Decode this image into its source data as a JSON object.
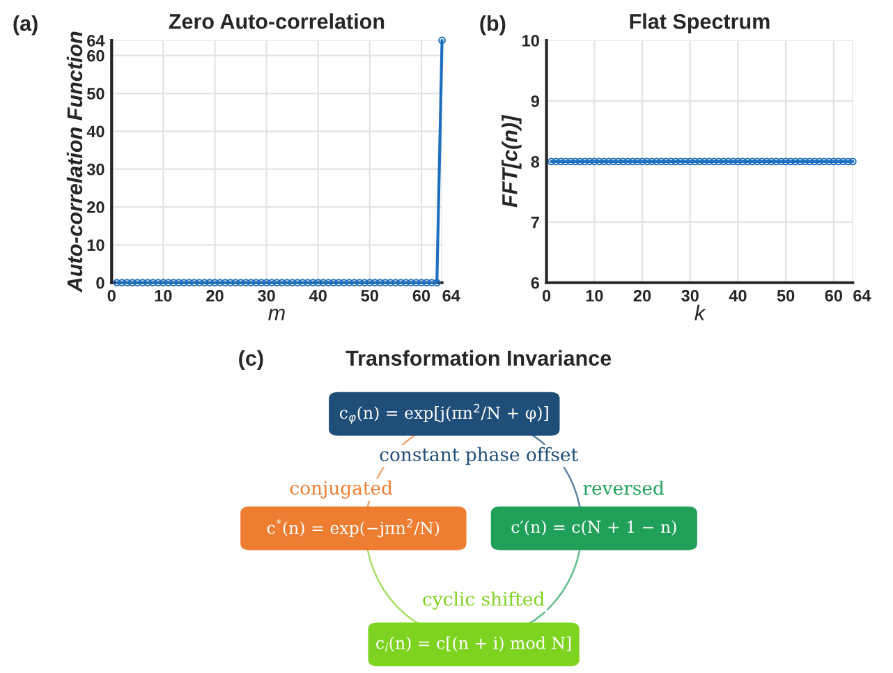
{
  "chart_data": [
    {
      "type": "line",
      "title": "Zero Auto-correlation",
      "xlabel": "m",
      "ylabel": "Auto-correlation Function",
      "annotations": [
        "(a)"
      ],
      "x": [
        1,
        2,
        3,
        4,
        5,
        6,
        7,
        8,
        9,
        10,
        11,
        12,
        13,
        14,
        15,
        16,
        17,
        18,
        19,
        20,
        21,
        22,
        23,
        24,
        25,
        26,
        27,
        28,
        29,
        30,
        31,
        32,
        33,
        34,
        35,
        36,
        37,
        38,
        39,
        40,
        41,
        42,
        43,
        44,
        45,
        46,
        47,
        48,
        49,
        50,
        51,
        52,
        53,
        54,
        55,
        56,
        57,
        58,
        59,
        60,
        61,
        62,
        63,
        64
      ],
      "series": [
        {
          "color": "#1f6fbf",
          "values": [
            0,
            0,
            0,
            0,
            0,
            0,
            0,
            0,
            0,
            0,
            0,
            0,
            0,
            0,
            0,
            0,
            0,
            0,
            0,
            0,
            0,
            0,
            0,
            0,
            0,
            0,
            0,
            0,
            0,
            0,
            0,
            0,
            0,
            0,
            0,
            0,
            0,
            0,
            0,
            0,
            0,
            0,
            0,
            0,
            0,
            0,
            0,
            0,
            0,
            0,
            0,
            0,
            0,
            0,
            0,
            0,
            0,
            0,
            0,
            0,
            0,
            0,
            0,
            64
          ]
        }
      ],
      "xlim": [
        0,
        64
      ],
      "xticks": [
        0,
        10,
        20,
        30,
        40,
        50,
        60,
        64
      ],
      "ylim": [
        0,
        64
      ],
      "yticks": [
        0,
        10,
        20,
        30,
        40,
        50,
        60,
        64
      ],
      "grid": true,
      "marker": "circle",
      "line_style": "solid"
    },
    {
      "type": "line",
      "title": "Flat Spectrum",
      "xlabel": "k",
      "ylabel": "FFT[c(n)]",
      "annotations": [
        "(b)"
      ],
      "x": [
        1,
        2,
        3,
        4,
        5,
        6,
        7,
        8,
        9,
        10,
        11,
        12,
        13,
        14,
        15,
        16,
        17,
        18,
        19,
        20,
        21,
        22,
        23,
        24,
        25,
        26,
        27,
        28,
        29,
        30,
        31,
        32,
        33,
        34,
        35,
        36,
        37,
        38,
        39,
        40,
        41,
        42,
        43,
        44,
        45,
        46,
        47,
        48,
        49,
        50,
        51,
        52,
        53,
        54,
        55,
        56,
        57,
        58,
        59,
        60,
        61,
        62,
        63,
        64
      ],
      "series": [
        {
          "color": "#1f6fbf",
          "values": [
            8,
            8,
            8,
            8,
            8,
            8,
            8,
            8,
            8,
            8,
            8,
            8,
            8,
            8,
            8,
            8,
            8,
            8,
            8,
            8,
            8,
            8,
            8,
            8,
            8,
            8,
            8,
            8,
            8,
            8,
            8,
            8,
            8,
            8,
            8,
            8,
            8,
            8,
            8,
            8,
            8,
            8,
            8,
            8,
            8,
            8,
            8,
            8,
            8,
            8,
            8,
            8,
            8,
            8,
            8,
            8,
            8,
            8,
            8,
            8,
            8,
            8,
            8,
            8
          ]
        }
      ],
      "xlim": [
        0,
        64
      ],
      "xticks": [
        0,
        10,
        20,
        30,
        40,
        50,
        60,
        64
      ],
      "ylim": [
        6,
        10
      ],
      "yticks": [
        6,
        7,
        8,
        9,
        10
      ],
      "grid": true,
      "marker": "circle",
      "line_style": "solid"
    },
    {
      "type": "other",
      "title": "Transformation Invariance",
      "annotations": [
        "(c)",
        "c$_{φ}$(n) = exp[j(πn$^{2}$/N + φ)]",
        "c$^{*}$(n) = exp(−jπn$^{2}$/N)",
        "c′(n) = c(N + 1 − n)",
        "c$_{i}$(n) = c[(n + i) mod N]",
        "constant phase offset",
        "conjugated",
        "reversed",
        "cyclic shifted"
      ],
      "colors": [
        "#1f4e79",
        "#ed7d31",
        "#21a05a",
        "#7ed321"
      ]
    }
  ]
}
